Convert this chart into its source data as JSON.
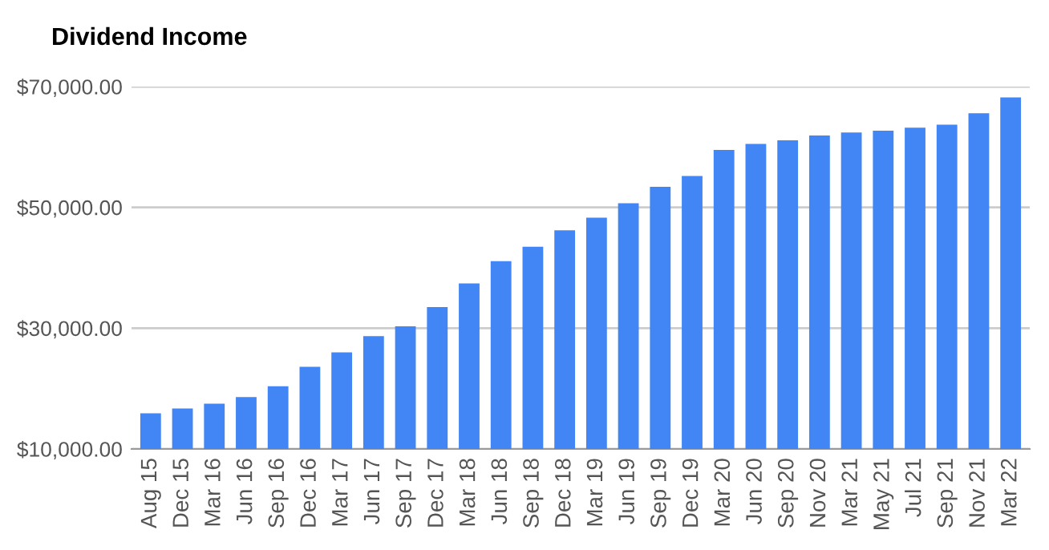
{
  "chart_data": {
    "type": "bar",
    "title": "Dividend Income",
    "categories": [
      "Aug 15",
      "Dec 15",
      "Mar 16",
      "Jun 16",
      "Sep 16",
      "Dec 16",
      "Mar 17",
      "Jun 17",
      "Sep 17",
      "Dec 17",
      "Mar 18",
      "Jun 18",
      "Sep 18",
      "Dec 18",
      "Mar 19",
      "Jun 19",
      "Sep 19",
      "Dec 19",
      "Mar 20",
      "Jun 20",
      "Sep 20",
      "Nov 20",
      "Mar 21",
      "May 21",
      "Jul 21",
      "Sep 21",
      "Nov 21",
      "Mar 22"
    ],
    "values": [
      15900,
      16700,
      17500,
      18600,
      20400,
      23600,
      26000,
      28700,
      30300,
      33500,
      37400,
      41100,
      43500,
      46200,
      48300,
      50700,
      53400,
      55200,
      59500,
      60500,
      61100,
      61900,
      62400,
      62700,
      63200,
      63700,
      65600,
      68200
    ],
    "color": "#4285f4",
    "ylim": [
      10000,
      70000
    ],
    "yticks": [
      {
        "value": 10000,
        "label": "$10,000.00"
      },
      {
        "value": 30000,
        "label": "$30,000.00"
      },
      {
        "value": 50000,
        "label": "$50,000.00"
      },
      {
        "value": 70000,
        "label": "$70,000.00"
      }
    ],
    "grid": "y",
    "legend": false
  }
}
